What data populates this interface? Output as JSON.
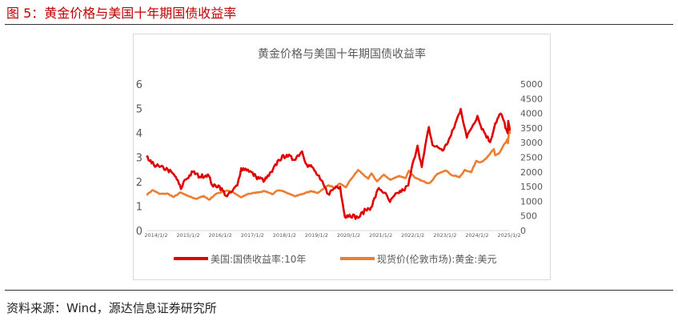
{
  "figure": {
    "title": "图 5：黄金价格与美国十年期国债收益率",
    "source": "资料来源：Wind，源达信息证券研究所"
  },
  "colors": {
    "yield": "#e00000",
    "gold": "#ed7d31",
    "title": "#c00000"
  },
  "chart_data": {
    "type": "line",
    "title": "黄金价格与美国十年期国债收益率",
    "x_tick_labels": [
      "2014/1/2",
      "2015/1/2",
      "2016/1/2",
      "2017/1/2",
      "2018/1/2",
      "2019/1/2",
      "2020/1/2",
      "2021/1/2",
      "2022/1/2",
      "2023/1/2",
      "2024/1/2",
      "2025/1/2"
    ],
    "x_range": [
      "2014-01-02",
      "2025-04-30"
    ],
    "y_left": {
      "range": [
        0,
        6
      ],
      "ticks": [
        0,
        1,
        2,
        3,
        4,
        5,
        6
      ]
    },
    "y_right": {
      "range": [
        0,
        5000
      ],
      "ticks": [
        0,
        500,
        1000,
        1500,
        2000,
        2500,
        3000,
        3500,
        4000,
        4500,
        5000
      ]
    },
    "grid": false,
    "legend_position": "bottom",
    "series": [
      {
        "name": "美国:国债收益率:10年",
        "axis": "left",
        "color": "#e00000",
        "points": [
          [
            "2014-01-02",
            3.0
          ],
          [
            "2014-03-01",
            2.75
          ],
          [
            "2014-06-01",
            2.6
          ],
          [
            "2014-09-01",
            2.5
          ],
          [
            "2014-12-01",
            2.2
          ],
          [
            "2015-01-30",
            1.7
          ],
          [
            "2015-03-01",
            2.0
          ],
          [
            "2015-06-15",
            2.4
          ],
          [
            "2015-09-01",
            2.2
          ],
          [
            "2015-12-01",
            2.3
          ],
          [
            "2016-02-01",
            1.8
          ],
          [
            "2016-04-01",
            1.85
          ],
          [
            "2016-07-06",
            1.4
          ],
          [
            "2016-09-01",
            1.6
          ],
          [
            "2016-11-01",
            1.85
          ],
          [
            "2016-12-15",
            2.55
          ],
          [
            "2017-03-01",
            2.5
          ],
          [
            "2017-06-01",
            2.2
          ],
          [
            "2017-09-07",
            2.05
          ],
          [
            "2017-12-01",
            2.4
          ],
          [
            "2018-02-15",
            2.9
          ],
          [
            "2018-05-17",
            3.1
          ],
          [
            "2018-08-01",
            2.9
          ],
          [
            "2018-11-08",
            3.24
          ],
          [
            "2018-12-31",
            2.7
          ],
          [
            "2019-03-01",
            2.6
          ],
          [
            "2019-06-01",
            2.1
          ],
          [
            "2019-09-01",
            1.5
          ],
          [
            "2019-12-01",
            1.8
          ],
          [
            "2020-01-15",
            1.8
          ],
          [
            "2020-03-09",
            0.55
          ],
          [
            "2020-05-01",
            0.65
          ],
          [
            "2020-08-04",
            0.52
          ],
          [
            "2020-11-01",
            0.85
          ],
          [
            "2021-01-01",
            0.95
          ],
          [
            "2021-03-31",
            1.74
          ],
          [
            "2021-06-01",
            1.55
          ],
          [
            "2021-08-04",
            1.17
          ],
          [
            "2021-11-01",
            1.55
          ],
          [
            "2022-01-03",
            1.65
          ],
          [
            "2022-03-01",
            1.85
          ],
          [
            "2022-05-01",
            2.9
          ],
          [
            "2022-06-14",
            3.48
          ],
          [
            "2022-08-01",
            2.6
          ],
          [
            "2022-10-21",
            4.24
          ],
          [
            "2022-12-01",
            3.5
          ],
          [
            "2023-02-01",
            3.4
          ],
          [
            "2023-04-06",
            3.3
          ],
          [
            "2023-07-01",
            3.9
          ],
          [
            "2023-10-19",
            4.98
          ],
          [
            "2023-12-27",
            3.8
          ],
          [
            "2024-02-01",
            4.1
          ],
          [
            "2024-04-25",
            4.7
          ],
          [
            "2024-06-01",
            4.3
          ],
          [
            "2024-09-16",
            3.62
          ],
          [
            "2024-11-15",
            4.4
          ],
          [
            "2025-01-14",
            4.79
          ],
          [
            "2025-02-20",
            4.5
          ],
          [
            "2025-03-10",
            4.2
          ],
          [
            "2025-04-04",
            3.99
          ],
          [
            "2025-04-11",
            4.49
          ],
          [
            "2025-04-30",
            4.1
          ]
        ]
      },
      {
        "name": "现货价(伦敦市场):黄金:美元",
        "axis": "right",
        "color": "#ed7d31",
        "points": [
          [
            "2014-01-02",
            1220
          ],
          [
            "2014-03-15",
            1380
          ],
          [
            "2014-06-01",
            1250
          ],
          [
            "2014-09-01",
            1260
          ],
          [
            "2014-11-07",
            1140
          ],
          [
            "2015-01-22",
            1300
          ],
          [
            "2015-04-01",
            1200
          ],
          [
            "2015-07-24",
            1080
          ],
          [
            "2015-10-15",
            1180
          ],
          [
            "2015-12-17",
            1050
          ],
          [
            "2016-03-01",
            1250
          ],
          [
            "2016-07-06",
            1365
          ],
          [
            "2016-09-01",
            1320
          ],
          [
            "2016-12-15",
            1130
          ],
          [
            "2017-03-01",
            1250
          ],
          [
            "2017-06-06",
            1295
          ],
          [
            "2017-09-08",
            1350
          ],
          [
            "2017-12-12",
            1240
          ],
          [
            "2018-01-25",
            1360
          ],
          [
            "2018-04-11",
            1350
          ],
          [
            "2018-08-16",
            1170
          ],
          [
            "2018-10-26",
            1235
          ],
          [
            "2019-02-20",
            1345
          ],
          [
            "2019-05-01",
            1280
          ],
          [
            "2019-09-04",
            1550
          ],
          [
            "2019-11-15",
            1465
          ],
          [
            "2020-01-08",
            1600
          ],
          [
            "2020-03-19",
            1475
          ],
          [
            "2020-05-15",
            1740
          ],
          [
            "2020-08-06",
            2065
          ],
          [
            "2020-11-30",
            1765
          ],
          [
            "2021-01-05",
            1950
          ],
          [
            "2021-03-08",
            1680
          ],
          [
            "2021-05-28",
            1905
          ],
          [
            "2021-08-09",
            1730
          ],
          [
            "2021-11-16",
            1865
          ],
          [
            "2022-01-28",
            1790
          ],
          [
            "2022-03-08",
            2040
          ],
          [
            "2022-05-15",
            1800
          ],
          [
            "2022-09-28",
            1625
          ],
          [
            "2022-11-03",
            1630
          ],
          [
            "2023-01-26",
            1940
          ],
          [
            "2023-05-04",
            2050
          ],
          [
            "2023-06-29",
            1905
          ],
          [
            "2023-10-05",
            1820
          ],
          [
            "2023-12-04",
            2070
          ],
          [
            "2024-02-14",
            1990
          ],
          [
            "2024-04-12",
            2380
          ],
          [
            "2024-06-01",
            2330
          ],
          [
            "2024-08-01",
            2450
          ],
          [
            "2024-10-30",
            2780
          ],
          [
            "2024-11-14",
            2565
          ],
          [
            "2025-01-02",
            2650
          ],
          [
            "2025-02-24",
            2950
          ],
          [
            "2025-03-14",
            3000
          ],
          [
            "2025-04-02",
            3120
          ],
          [
            "2025-04-08",
            2980
          ],
          [
            "2025-04-17",
            3330
          ],
          [
            "2025-04-22",
            3500
          ],
          [
            "2025-04-30",
            3300
          ]
        ]
      }
    ]
  }
}
